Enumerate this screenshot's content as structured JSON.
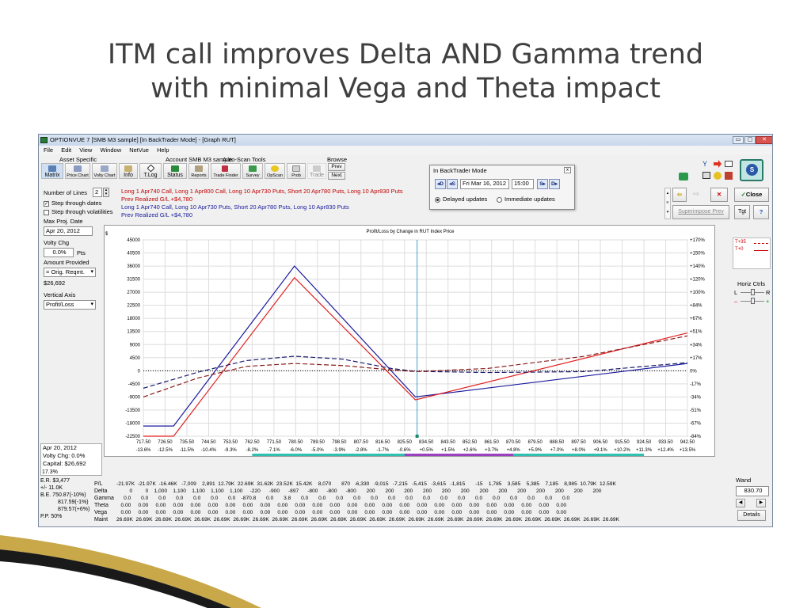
{
  "slide": {
    "title_line1": "ITM call improves Delta AND Gamma trend",
    "title_line2": "with minimal Vega and Theta impact"
  },
  "window": {
    "title": "OPTIONVUE 7   [SMB M3 sample]   [In BackTrader Mode] - [Graph RUT]",
    "controls": [
      "▭",
      "▢",
      "✕"
    ]
  },
  "menu": [
    "File",
    "Edit",
    "View",
    "Window",
    "NetVue",
    "Help"
  ],
  "toolbar": {
    "group_asset": "Asset Specific",
    "group_account": "Account SMB M3 sample",
    "group_autoscan": "Auto-Scan Tools",
    "group_browse": "Browse",
    "buttons": [
      "Matrix",
      "Price Chart",
      "Volty Chart",
      "Info",
      "T.Log",
      "Status",
      "Reports",
      "Trade Finder",
      "Survey",
      "OpScan",
      "Prob",
      "Trade"
    ],
    "prev": "Prev",
    "next": "Next"
  },
  "backtrader": {
    "title": "In BackTrader Mode",
    "close": "x",
    "back_big": "◂D",
    "back_small": "◂S",
    "date": "Fri Mar 16, 2012",
    "time": "15:00",
    "fwd_small": "S▸",
    "fwd_big": "D▸",
    "delayed": "Delayed updates",
    "immediate": "Immediate updates"
  },
  "left_panel": {
    "num_lines_label": "Number of Lines",
    "num_lines_value": "2",
    "step_dates": "Step through dates",
    "step_vol": "Step through volatilities",
    "max_proj_label": "Max Proj. Date",
    "max_proj_value": "Apr 20, 2012",
    "volty_chg_label": "Volty Chg",
    "volty_chg_value": "0.0%",
    "volty_unit": "Pts",
    "amount_label": "Amount Provided",
    "amount_value": "= Orig. Reqmt.",
    "amount_num": "$26,692",
    "vaxis_label": "Vertical Axis",
    "vaxis_value": "Profit/Loss",
    "bottom_date": "Apr 20, 2012",
    "bottom_volty": "Volty Chg:  0.0%",
    "bottom_capital": "Capital:  $26,692",
    "pct": "17.3%"
  },
  "positions": {
    "line1": "Long 1 Apr740 Call, Long 1 Apr800 Call, Long 10 Apr730 Puts, Short 20 Apr780 Puts, Long 10 Apr830 Puts",
    "line1b": "Prev Realized G/L +$4,780",
    "line2": "Long 1 Apr740 Call, Long 10 Apr730 Puts, Short 20 Apr780 Puts, Long 10 Apr830 Puts",
    "line2b": "Prev Realized G/L +$4,780"
  },
  "right_panel": {
    "close": "Close",
    "superimpose": "Superimpose Prev",
    "tgt": "Tgt",
    "help": "?",
    "legend_a": "T+35",
    "legend_b": "T+0",
    "horiz": "Horiz Ctrls",
    "L": "L",
    "R": "R",
    "wand": "Wand",
    "wand_value": "830.70",
    "details": "Details"
  },
  "chart_data": {
    "type": "line",
    "title": "Profit/Loss by Change in RUT Index Price",
    "ylabel": "$",
    "xlim": [
      717.5,
      942.5
    ],
    "ylim": [
      -22500,
      45000
    ],
    "y_ticks": [
      "45000",
      "40500",
      "36000",
      "31500",
      "27000",
      "22500",
      "18000",
      "13500",
      "9000",
      "4500",
      "0",
      "-4500",
      "-9000",
      "-13500",
      "-18000",
      "-22500"
    ],
    "y2_ticks": [
      "+170%",
      "+150%",
      "+140%",
      "+120%",
      "+100%",
      "+84%",
      "+67%",
      "+51%",
      "+34%",
      "+17%",
      "0%",
      "-17%",
      "-34%",
      "-51%",
      "-67%",
      "-84%"
    ],
    "x_ticks": [
      "717.50",
      "726.50",
      "735.50",
      "744.50",
      "753.50",
      "762.50",
      "771.50",
      "780.50",
      "789.50",
      "798.50",
      "807.50",
      "816.50",
      "825.50",
      "834.50",
      "843.50",
      "852.50",
      "861.50",
      "870.50",
      "879.50",
      "888.50",
      "897.50",
      "906.50",
      "915.50",
      "924.50",
      "933.50",
      "942.50"
    ],
    "x_pct": [
      "-13.6%",
      "-12.5%",
      "-11.5%",
      "-10.4%",
      "-9.3%",
      "-8.2%",
      "-7.1%",
      "-6.0%",
      "-5.0%",
      "-3.9%",
      "-2.8%",
      "-1.7%",
      "-0.6%",
      "+0.5%",
      "+1.5%",
      "+2.6%",
      "+3.7%",
      "+4.8%",
      "+5.9%",
      "+7.0%",
      "+8.0%",
      "+9.1%",
      "+10.2%",
      "+11.3%",
      "+12.4%",
      "+13.5%"
    ],
    "current_x": 830.7,
    "series": [
      {
        "color": "#1a1a9e",
        "dash": false,
        "x": [
          717.5,
          730,
          780,
          830,
          942.5
        ],
        "y": [
          -19000,
          -19000,
          36000,
          -9000,
          2500
        ]
      },
      {
        "color": "#e02020",
        "dash": false,
        "x": [
          717.5,
          730,
          780,
          830,
          942.5
        ],
        "y": [
          -22500,
          -22500,
          32000,
          -10000,
          13000
        ]
      },
      {
        "color": "#1a1a6e",
        "dash": true,
        "x": [
          717.5,
          740,
          760,
          780,
          800,
          820,
          830,
          860,
          900,
          942.5
        ],
        "y": [
          -6000,
          -500,
          3500,
          5000,
          4000,
          800,
          -200,
          -600,
          -300,
          2800
        ]
      },
      {
        "color": "#8b1a1a",
        "dash": true,
        "x": [
          717.5,
          740,
          760,
          780,
          800,
          820,
          830,
          860,
          900,
          942.5
        ],
        "y": [
          -9000,
          -2500,
          1500,
          2500,
          1800,
          300,
          -300,
          800,
          5000,
          12000
        ]
      }
    ]
  },
  "stats": {
    "er": "E.R. $3,477",
    "pm": "+/-   11.0K",
    "be1": "B.E. 750.87(-10%)",
    "be2": "817.59(-1%)",
    "be3": "879.57(+6%)",
    "pp": "P.P. 50%",
    "row_labels": [
      "P/L",
      "Delta",
      "Gamma",
      "Theta",
      "Vega",
      "Maint"
    ],
    "rows": [
      "-21.97K  -21.97K  -16.46K   -7,009    2,891  12.79K  22.69K  31.62K  23.52K  15.42K    8,070       870   -6,330   -9,015   -7,215   -5,415   -3,615   -1,815       -15    1,785    3,585    5,385    7,185    8,985  10.79K  12.59K",
      "         0         0    1,000    1,100    1,100    1,100    1,100     -220      -900      -897      -800      -800      -800       200       200       200       200       200       200       200       200       200       200       200       200       200",
      "     0.0       0.0       0.0       0.0       0.0       0.0       0.0    -870.8       0.0       3.8       0.0       0.0       0.0       0.0       0.0       0.0       0.0       0.0       0.0       0.0       0.0       0.0       0.0       0.0       0.0       0.0",
      "   0.00     0.00     0.00     0.00     0.00     0.00     0.00     0.00     0.00     0.00     0.00     0.00     0.00     0.00     0.00     0.00     0.00     0.00     0.00     0.00     0.00     0.00     0.00     0.00     0.00     0.00",
      "   0.00     0.00     0.00     0.00     0.00     0.00     0.00     0.00     0.00     0.00     0.00     0.00     0.00     0.00     0.00     0.00     0.00     0.00     0.00     0.00     0.00     0.00     0.00     0.00     0.00     0.00",
      "26.69K  26.69K  26.69K  26.69K  26.69K  26.69K  26.69K  26.69K  26.69K  26.69K  26.69K  26.69K  26.69K  26.69K  26.69K  26.69K  26.69K  26.69K  26.69K  26.69K  26.69K  26.69K  26.69K  26.69K  26.69K  26.69K"
    ]
  }
}
